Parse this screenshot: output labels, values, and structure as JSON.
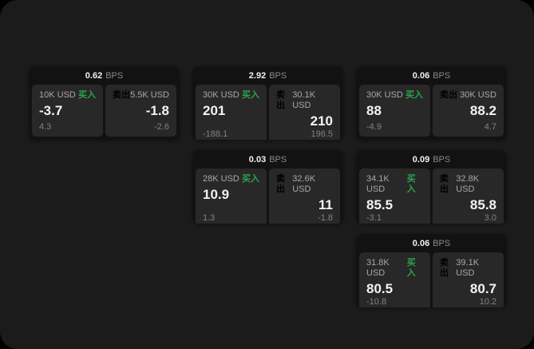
{
  "labels": {
    "bps_unit": "BPS",
    "buy": "买入",
    "sell": "卖出"
  },
  "colors": {
    "page_bg": "#000000",
    "surface_bg": "#1b1b1b",
    "card_bg": "#121212",
    "pane_bg": "#282828",
    "buy_green": "#2ea24f",
    "sell_red": "#cc4462",
    "primary_text": "#f3f3f3",
    "muted_text": "#a8a8a8"
  },
  "cards": [
    {
      "bps": "0.62",
      "buy": {
        "notional": "10K USD",
        "price": "-3.7",
        "delta": "4.3"
      },
      "sell": {
        "notional": "5.5K USD",
        "price": "-1.8",
        "delta": "-2.6"
      }
    },
    {
      "bps": "2.92",
      "buy": {
        "notional": "30K USD",
        "price": "201",
        "delta": "-188.1"
      },
      "sell": {
        "notional": "30.1K USD",
        "price": "210",
        "delta": "196.5"
      }
    },
    {
      "bps": "0.06",
      "buy": {
        "notional": "30K USD",
        "price": "88",
        "delta": "-4.9"
      },
      "sell": {
        "notional": "30K USD",
        "price": "88.2",
        "delta": "4.7"
      }
    },
    {
      "bps": "0.03",
      "buy": {
        "notional": "28K USD",
        "price": "10.9",
        "delta": "1.3"
      },
      "sell": {
        "notional": "32.6K USD",
        "price": "11",
        "delta": "-1.8"
      }
    },
    {
      "bps": "0.09",
      "buy": {
        "notional": "34.1K USD",
        "price": "85.5",
        "delta": "-3.1"
      },
      "sell": {
        "notional": "32.8K USD",
        "price": "85.8",
        "delta": "3.0"
      }
    },
    {
      "bps": "0.06",
      "buy": {
        "notional": "31.8K USD",
        "price": "80.5",
        "delta": "-10.8"
      },
      "sell": {
        "notional": "39.1K USD",
        "price": "80.7",
        "delta": "10.2"
      }
    }
  ]
}
